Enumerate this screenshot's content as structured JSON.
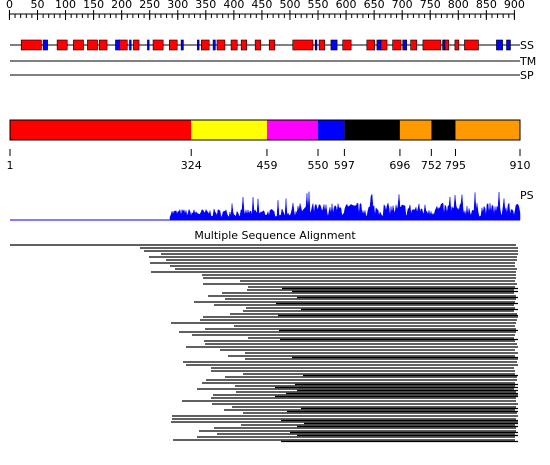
{
  "ruler": {
    "ticks": [
      0,
      50,
      100,
      150,
      200,
      250,
      300,
      350,
      400,
      450,
      500,
      550,
      600,
      650,
      700,
      750,
      800,
      850,
      900
    ]
  },
  "tracks": {
    "ss": "SS",
    "tm": "TM",
    "sp": "SP"
  },
  "ss": {
    "helix_color": "#ff0000",
    "strand_color": "#0000ff",
    "helices": [
      [
        21,
        57
      ],
      [
        85,
        103
      ],
      [
        114,
        132
      ],
      [
        139,
        157
      ],
      [
        160,
        174
      ],
      [
        196,
        210
      ],
      [
        221,
        231
      ],
      [
        256,
        274
      ],
      [
        285,
        299
      ],
      [
        342,
        356
      ],
      [
        370,
        384
      ],
      [
        395,
        406
      ],
      [
        413,
        423
      ],
      [
        438,
        448
      ],
      [
        463,
        473
      ],
      [
        505,
        541
      ],
      [
        552,
        562
      ],
      [
        594,
        609
      ],
      [
        637,
        651
      ],
      [
        662,
        673
      ],
      [
        683,
        698
      ],
      [
        715,
        726
      ],
      [
        737,
        769
      ],
      [
        776,
        783
      ],
      [
        794,
        801
      ],
      [
        811,
        836
      ]
    ],
    "strands": [
      [
        60,
        68
      ],
      [
        189,
        196
      ],
      [
        214,
        217
      ],
      [
        246,
        249
      ],
      [
        306,
        310
      ],
      [
        335,
        338
      ],
      [
        363,
        367
      ],
      [
        545,
        548
      ],
      [
        573,
        584
      ],
      [
        655,
        662
      ],
      [
        701,
        708
      ],
      [
        772,
        776
      ],
      [
        868,
        879
      ],
      [
        886,
        893
      ]
    ]
  },
  "domains": {
    "boundaries": [
      1,
      324,
      459,
      550,
      597,
      696,
      752,
      795,
      910
    ],
    "colors": [
      "#ff0000",
      "#ffff00",
      "#ff00ff",
      "#0000ff",
      "#000000",
      "#ff9900",
      "#000000",
      "#ff9900"
    ]
  },
  "ps_label": "PS",
  "msa_title": "Multiple Sequence Alignment"
}
